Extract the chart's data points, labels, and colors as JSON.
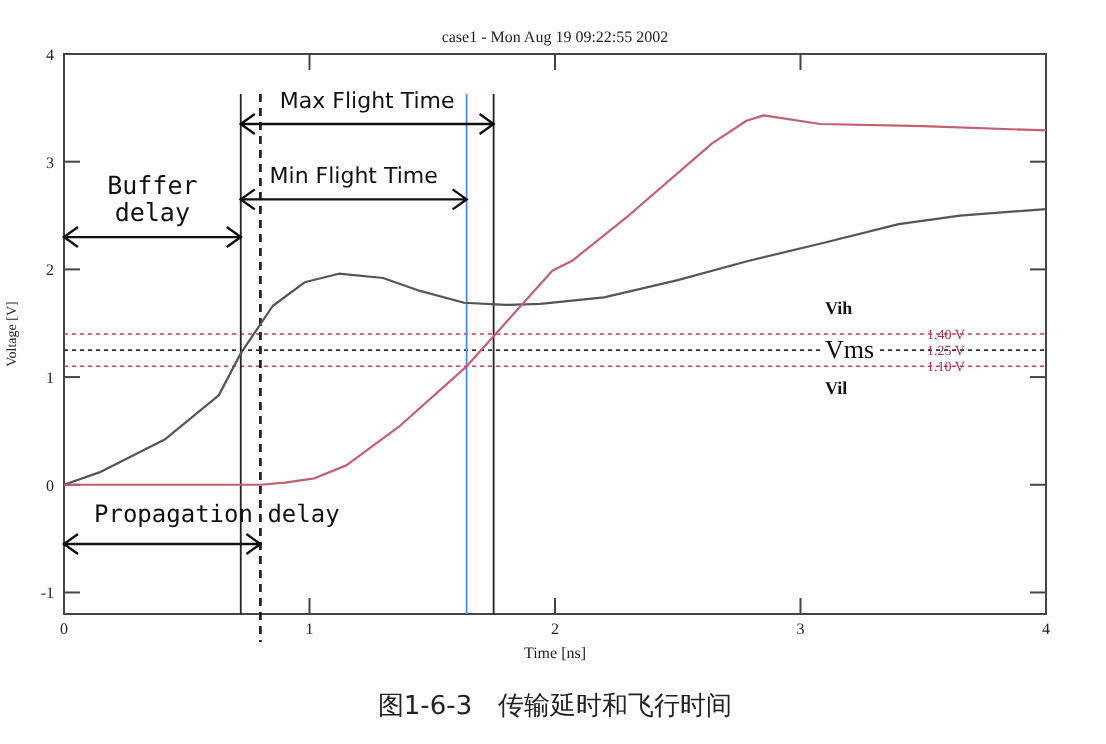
{
  "chart_data": {
    "type": "line",
    "title": "case1 - Mon Aug 19 09:22:55 2002",
    "xlabel": "Time [ns]",
    "ylabel": "Voltage [V]",
    "xlim": [
      0,
      4
    ],
    "ylim": [
      -1.2,
      4
    ],
    "xticks": [
      0,
      1,
      2,
      3,
      4
    ],
    "yticks": [
      -1,
      0,
      1,
      2,
      3,
      4
    ],
    "grid": false,
    "marker": "none",
    "line_style": "solid",
    "series": [
      {
        "color": "#555555",
        "x": [
          0,
          0.15,
          0.41,
          0.63,
          0.72,
          0.85,
          0.98,
          1.12,
          1.3,
          1.45,
          1.63,
          1.8,
          1.94,
          2.2,
          2.5,
          2.79,
          3.1,
          3.4,
          3.65,
          4
        ],
        "values": [
          0,
          0.12,
          0.42,
          0.83,
          1.22,
          1.66,
          1.88,
          1.96,
          1.92,
          1.8,
          1.69,
          1.67,
          1.68,
          1.74,
          1.9,
          2.08,
          2.25,
          2.42,
          2.5,
          2.56
        ]
      },
      {
        "color": "#c06070",
        "x": [
          0,
          0.5,
          0.8,
          0.9,
          1.02,
          1.15,
          1.37,
          1.64,
          1.75,
          1.99,
          2.07,
          2.3,
          2.64,
          2.78,
          2.85,
          3.08,
          3.5,
          4
        ],
        "values": [
          0,
          0,
          0,
          0.02,
          0.06,
          0.18,
          0.55,
          1.1,
          1.38,
          1.99,
          2.08,
          2.5,
          3.17,
          3.38,
          3.43,
          3.35,
          3.33,
          3.29
        ]
      }
    ],
    "ref_lines": [
      {
        "axis": "y",
        "value": 1.4,
        "label": "Vih",
        "color": "#c04060",
        "line_style": "dotted"
      },
      {
        "axis": "y",
        "value": 1.25,
        "label": "Vms",
        "color": "#333333",
        "line_style": "dotted"
      },
      {
        "axis": "y",
        "value": 1.1,
        "label": "Vil",
        "color": "#c04060",
        "line_style": "dotted"
      },
      {
        "axis": "x",
        "value": 0.72,
        "color": "#222222",
        "line_style": "solid"
      },
      {
        "axis": "x",
        "value": 1.64,
        "color": "#4a90d9",
        "line_style": "solid"
      },
      {
        "axis": "x",
        "value": 1.75,
        "color": "#222222",
        "line_style": "solid"
      },
      {
        "axis": "x",
        "value": 0.8,
        "color": "#222222",
        "line_style": "dashed"
      }
    ],
    "annotations": [
      "Buffer delay",
      "Max Flight Time",
      "Min Flight Time",
      "Propagation delay",
      "1.40 V",
      "1.25 V",
      "1.10 V",
      "图1-6-3　传输延时和飞行时间"
    ]
  }
}
